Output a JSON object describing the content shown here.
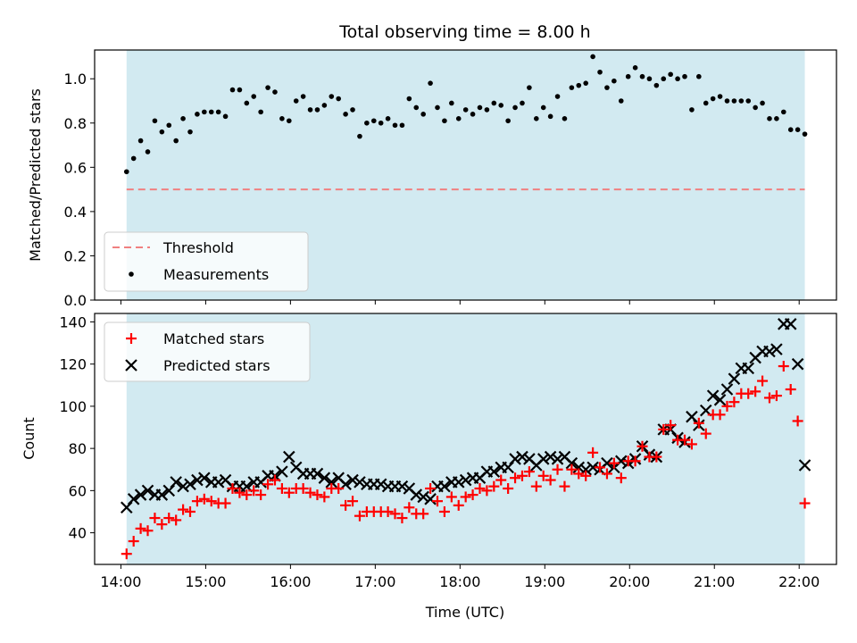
{
  "title": "Total observing time = 8.00 h",
  "colors": {
    "shade": "#add8e6",
    "threshold": "#f08080",
    "measurement": "#000000",
    "matched": "#ff0000",
    "predicted": "#000000"
  },
  "chart_data": [
    {
      "type": "scatter",
      "ylabel": "Matched/Predicted stars",
      "ylim": [
        0,
        1.13
      ],
      "yticks": [
        "0.0",
        "0.2",
        "0.4",
        "0.6",
        "0.8",
        "1.0"
      ],
      "xlim_hours": [
        13.69,
        22.44
      ],
      "shaded_range": [
        "14:04",
        "22:04"
      ],
      "threshold": 0.5,
      "legend": {
        "position": "lower-left",
        "entries": [
          "Threshold",
          "Measurements"
        ]
      },
      "series": [
        {
          "name": "Measurements",
          "x": [
            "14:04",
            "14:09",
            "14:14",
            "14:19",
            "14:24",
            "14:29",
            "14:34",
            "14:39",
            "14:44",
            "14:49",
            "14:54",
            "14:59",
            "15:04",
            "15:09",
            "15:14",
            "15:19",
            "15:24",
            "15:29",
            "15:34",
            "15:39",
            "15:44",
            "15:49",
            "15:54",
            "15:59",
            "16:04",
            "16:09",
            "16:14",
            "16:19",
            "16:24",
            "16:29",
            "16:34",
            "16:39",
            "16:44",
            "16:49",
            "16:54",
            "16:59",
            "17:04",
            "17:09",
            "17:14",
            "17:19",
            "17:24",
            "17:29",
            "17:34",
            "17:39",
            "17:44",
            "17:49",
            "17:54",
            "17:59",
            "18:04",
            "18:09",
            "18:14",
            "18:19",
            "18:24",
            "18:29",
            "18:34",
            "18:39",
            "18:44",
            "18:49",
            "18:54",
            "18:59",
            "19:04",
            "19:09",
            "19:14",
            "19:19",
            "19:24",
            "19:29",
            "19:34",
            "19:39",
            "19:44",
            "19:49",
            "19:54",
            "19:59",
            "20:04",
            "20:09",
            "20:14",
            "20:19",
            "20:24",
            "20:29",
            "20:34",
            "20:39",
            "20:44",
            "20:49",
            "20:54",
            "20:59",
            "21:04",
            "21:09",
            "21:14",
            "21:19",
            "21:24",
            "21:29",
            "21:34",
            "21:39",
            "21:44",
            "21:49",
            "21:54",
            "21:59",
            "22:04"
          ],
          "values": [
            0.58,
            0.64,
            0.72,
            0.67,
            0.81,
            0.76,
            0.79,
            0.72,
            0.82,
            0.76,
            0.84,
            0.85,
            0.85,
            0.85,
            0.83,
            0.95,
            0.95,
            0.89,
            0.92,
            0.85,
            0.96,
            0.94,
            0.82,
            0.81,
            0.9,
            0.92,
            0.86,
            0.86,
            0.88,
            0.92,
            0.91,
            0.84,
            0.86,
            0.74,
            0.8,
            0.81,
            0.8,
            0.82,
            0.79,
            0.79,
            0.91,
            0.87,
            0.84,
            0.98,
            0.87,
            0.81,
            0.89,
            0.82,
            0.86,
            0.84,
            0.87,
            0.86,
            0.89,
            0.88,
            0.81,
            0.87,
            0.89,
            0.96,
            0.82,
            0.87,
            0.83,
            0.92,
            0.82,
            0.96,
            0.97,
            0.98,
            1.1,
            1.03,
            0.96,
            0.99,
            0.9,
            1.01,
            1.05,
            1.01,
            1.0,
            0.97,
            1.0,
            1.02,
            1.0,
            1.01,
            0.86,
            1.01,
            0.89,
            0.91,
            0.92,
            0.9,
            0.9,
            0.9,
            0.9,
            0.87,
            0.89,
            0.82,
            0.82,
            0.85,
            0.77,
            0.77,
            0.75
          ]
        }
      ]
    },
    {
      "type": "scatter",
      "title": "",
      "xlabel": "Time (UTC)",
      "ylabel": "Count",
      "ylim": [
        25,
        144
      ],
      "yticks": [
        "40",
        "60",
        "80",
        "100",
        "120",
        "140"
      ],
      "xticks": [
        "14:00",
        "15:00",
        "16:00",
        "17:00",
        "18:00",
        "19:00",
        "20:00",
        "21:00",
        "22:00"
      ],
      "xlim_hours": [
        13.69,
        22.44
      ],
      "shaded_range": [
        "14:04",
        "22:04"
      ],
      "legend": {
        "position": "upper-left",
        "entries": [
          "Matched stars",
          "Predicted stars"
        ]
      },
      "series": [
        {
          "name": "Matched stars",
          "marker": "plus",
          "values": [
            30,
            36,
            42,
            41,
            47,
            44,
            47,
            46,
            51,
            50,
            55,
            56,
            55,
            54,
            54,
            61,
            59,
            58,
            60,
            58,
            63,
            65,
            61,
            59,
            61,
            61,
            59,
            58,
            57,
            61,
            61,
            53,
            55,
            48,
            50,
            50,
            50,
            50,
            49,
            47,
            52,
            49,
            49,
            61,
            55,
            50,
            57,
            53,
            57,
            58,
            61,
            60,
            62,
            65,
            61,
            66,
            67,
            69,
            62,
            67,
            65,
            70,
            62,
            70,
            68,
            67,
            78,
            71,
            68,
            73,
            66,
            74,
            74,
            81,
            76,
            76,
            89,
            91,
            84,
            84,
            82,
            92,
            87,
            96,
            96,
            100,
            102,
            106,
            106,
            107,
            112,
            104,
            105,
            119,
            108,
            93,
            54
          ]
        },
        {
          "name": "Predicted stars",
          "marker": "x",
          "values": [
            52,
            56,
            58,
            60,
            58,
            58,
            60,
            64,
            62,
            63,
            65,
            66,
            64,
            64,
            65,
            62,
            62,
            62,
            64,
            64,
            67,
            67,
            69,
            76,
            71,
            68,
            68,
            68,
            66,
            64,
            66,
            63,
            65,
            64,
            63,
            63,
            63,
            62,
            62,
            62,
            61,
            58,
            57,
            56,
            62,
            62,
            64,
            64,
            65,
            66,
            66,
            69,
            69,
            71,
            71,
            75,
            76,
            75,
            72,
            75,
            76,
            75,
            76,
            73,
            71,
            70,
            71,
            70,
            73,
            71,
            74,
            73,
            75,
            81,
            77,
            76,
            89,
            89,
            85,
            83,
            95,
            91,
            98,
            105,
            103,
            108,
            113,
            118,
            118,
            123,
            126,
            126,
            127,
            139,
            139,
            120,
            72
          ]
        }
      ]
    }
  ]
}
